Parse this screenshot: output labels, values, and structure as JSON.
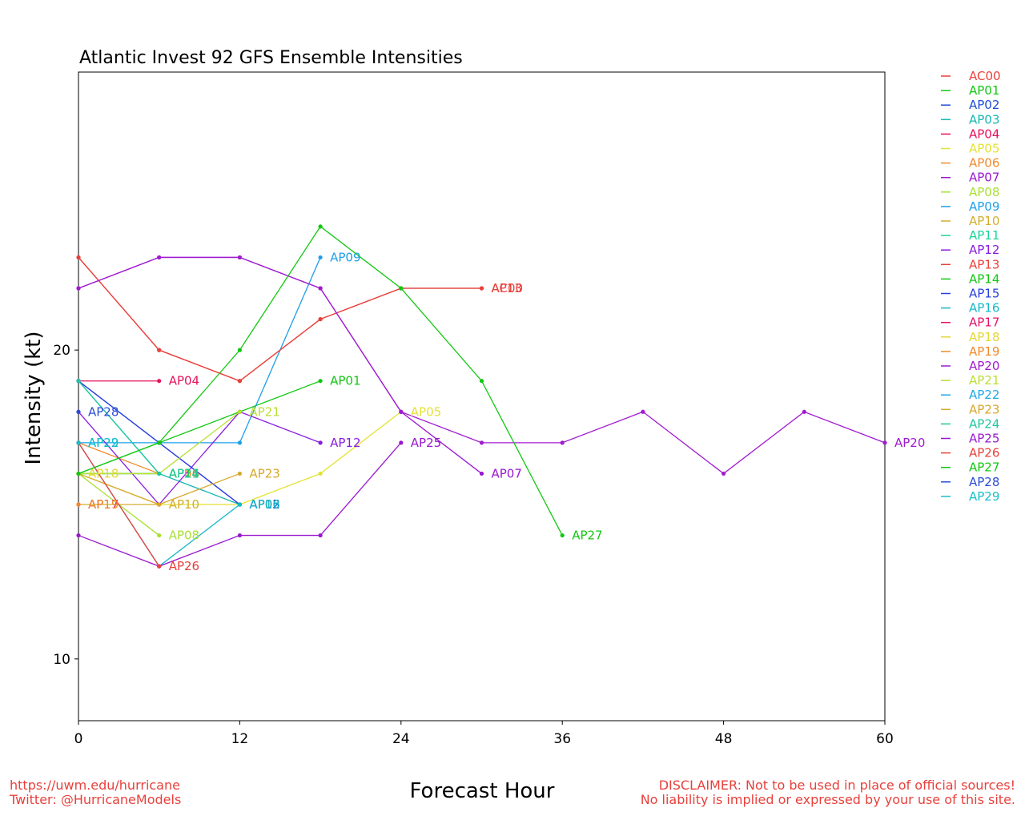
{
  "chart_data": {
    "type": "line",
    "title": "Atlantic Invest 92 GFS Ensemble Intensities",
    "xlabel": "Forecast Hour",
    "ylabel": "Intensity (kt)",
    "xlim": [
      0,
      60
    ],
    "ylim": [
      8,
      29
    ],
    "xticks": [
      0,
      12,
      24,
      36,
      48,
      60
    ],
    "yticks": [
      10,
      20
    ],
    "grid": false,
    "legend_position": "outside-right-top",
    "series": [
      {
        "name": "AC00",
        "color": "#e8413c",
        "x": [
          0,
          6,
          12,
          18,
          24,
          30
        ],
        "y": [
          23,
          20,
          19,
          21,
          22,
          22
        ]
      },
      {
        "name": "AP01",
        "color": "#11c811",
        "x": [
          0,
          6,
          12,
          18
        ],
        "y": [
          16,
          17,
          18,
          19
        ]
      },
      {
        "name": "AP02",
        "color": "#1f4ed8",
        "x": [
          0,
          6,
          12
        ],
        "y": [
          19,
          17,
          15
        ]
      },
      {
        "name": "AP03",
        "color": "#16b8b0",
        "x": [
          0,
          6,
          12
        ],
        "y": [
          19,
          16,
          15
        ]
      },
      {
        "name": "AP04",
        "color": "#e8125a",
        "x": [
          0,
          6
        ],
        "y": [
          19,
          19
        ]
      },
      {
        "name": "AP05",
        "color": "#e4e233",
        "x": [
          0,
          6,
          12,
          18,
          24
        ],
        "y": [
          16,
          15,
          15,
          16,
          18
        ]
      },
      {
        "name": "AP06",
        "color": "#f08a2c",
        "x": [
          0,
          6
        ],
        "y": [
          17,
          16
        ]
      },
      {
        "name": "AP07",
        "color": "#9a17d0",
        "x": [
          0,
          6,
          12,
          18,
          24,
          30
        ],
        "y": [
          22,
          23,
          23,
          22,
          18,
          16
        ]
      },
      {
        "name": "AP08",
        "color": "#a8e033",
        "x": [
          0,
          6
        ],
        "y": [
          16,
          14
        ]
      },
      {
        "name": "AP09",
        "color": "#1e9fe8",
        "x": [
          0,
          6,
          12,
          18
        ],
        "y": [
          17,
          17,
          17,
          23
        ]
      },
      {
        "name": "AP10",
        "color": "#d4ae2c",
        "x": [
          0,
          6
        ],
        "y": [
          15,
          15
        ]
      },
      {
        "name": "AP11",
        "color": "#1ed39a",
        "x": [
          0,
          6
        ],
        "y": [
          16,
          16
        ]
      },
      {
        "name": "AP12",
        "color": "#8a1be0",
        "x": [
          0,
          6,
          12,
          18
        ],
        "y": [
          18,
          15,
          18,
          17
        ]
      },
      {
        "name": "AP13",
        "color": "#e8413c",
        "x": [
          0,
          6,
          12,
          18,
          24,
          30
        ],
        "y": [
          23,
          20,
          19,
          21,
          22,
          22
        ]
      },
      {
        "name": "AP14",
        "color": "#11c811",
        "x": [
          0,
          6
        ],
        "y": [
          16,
          16
        ]
      },
      {
        "name": "AP15",
        "color": "#2a3ee0",
        "x": [
          0,
          6,
          12
        ],
        "y": [
          19,
          17,
          15
        ]
      },
      {
        "name": "AP16",
        "color": "#16b8c8",
        "x": [
          0,
          6,
          12
        ],
        "y": [
          17,
          13,
          15
        ]
      },
      {
        "name": "AP17",
        "color": "#e8126a",
        "x": [
          0
        ],
        "y": [
          15
        ]
      },
      {
        "name": "AP18",
        "color": "#e4d833",
        "x": [
          0
        ],
        "y": [
          16
        ]
      },
      {
        "name": "AP19",
        "color": "#f08a2c",
        "x": [
          0
        ],
        "y": [
          15
        ]
      },
      {
        "name": "AP20",
        "color": "#a01bd0",
        "x": [
          0,
          6,
          12,
          18,
          24,
          30,
          36,
          42,
          48,
          54,
          60
        ],
        "y": [
          22,
          23,
          23,
          22,
          18,
          17,
          17,
          18,
          16,
          18,
          17
        ]
      },
      {
        "name": "AP21",
        "color": "#b8e033",
        "x": [
          0,
          6,
          12
        ],
        "y": [
          16,
          16,
          18
        ]
      },
      {
        "name": "AP22",
        "color": "#1ea8e8",
        "x": [
          0
        ],
        "y": [
          17
        ]
      },
      {
        "name": "AP23",
        "color": "#d8a82c",
        "x": [
          0,
          6,
          12
        ],
        "y": [
          16,
          15,
          16
        ]
      },
      {
        "name": "AP24",
        "color": "#1ec8a0",
        "x": [
          0,
          6
        ],
        "y": [
          19,
          16
        ]
      },
      {
        "name": "AP25",
        "color": "#9a17d0",
        "x": [
          0,
          6,
          12,
          18,
          24
        ],
        "y": [
          14,
          13,
          14,
          14,
          17
        ]
      },
      {
        "name": "AP26",
        "color": "#e8413c",
        "x": [
          0,
          6
        ],
        "y": [
          17,
          13
        ]
      },
      {
        "name": "AP27",
        "color": "#11c811",
        "x": [
          0,
          6,
          12,
          18,
          24,
          30,
          36
        ],
        "y": [
          16,
          17,
          20,
          24,
          22,
          19,
          14
        ]
      },
      {
        "name": "AP28",
        "color": "#2a4ed8",
        "x": [
          0
        ],
        "y": [
          18
        ]
      },
      {
        "name": "AP29",
        "color": "#16c0c8",
        "x": [
          0
        ],
        "y": [
          17
        ]
      }
    ]
  },
  "footer": {
    "left_line1": "https://uwm.edu/hurricane",
    "left_line2": "Twitter: @HurricaneModels",
    "right_line1": "DISCLAIMER: Not to be used in place of official sources!",
    "right_line2": "No liability is implied or expressed by your use of this site."
  }
}
